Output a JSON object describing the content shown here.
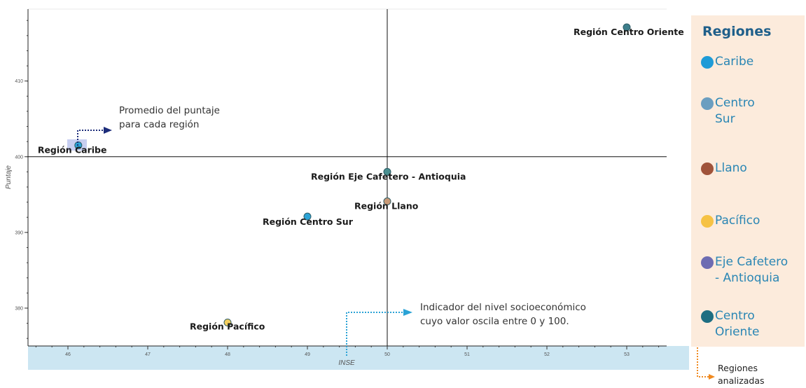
{
  "chart_data": {
    "type": "scatter",
    "xlabel": "INSE",
    "ylabel": "Puntaje",
    "xlim": [
      45.5,
      53.5
    ],
    "ylim": [
      375,
      419.5
    ],
    "x_ticks": [
      46,
      47,
      48,
      49,
      50,
      51,
      52,
      53
    ],
    "y_ticks": [
      380,
      390,
      400,
      410
    ],
    "reference_lines": {
      "x": 50,
      "y": 400
    },
    "points": [
      {
        "label": "Región Caribe",
        "x": 46.13,
        "y": 401.5,
        "color": "#2ba3d6"
      },
      {
        "label": "Región Centro Oriente",
        "x": 53.0,
        "y": 417.1,
        "color": "#3e7f8c"
      },
      {
        "label": "Región Eje Cafetero - Antioquia",
        "x": 50.0,
        "y": 398.0,
        "color": "#4a8f90"
      },
      {
        "label": "Región Llano",
        "x": 50.0,
        "y": 394.1,
        "color": "#c89a78"
      },
      {
        "label": "Región Centro Sur",
        "x": 49.0,
        "y": 392.1,
        "color": "#2ba3d6"
      },
      {
        "label": "Región Pacífico",
        "x": 48.0,
        "y": 378.1,
        "color": "#f4cf5e"
      }
    ],
    "annotations": [
      {
        "text": [
          "Promedio del puntaje",
          "para cada región"
        ]
      },
      {
        "text": [
          "Indicador del nivel socioeconómico",
          "cuyo valor oscila entre 0 y 100."
        ]
      }
    ],
    "legend_placement": "right"
  },
  "legend": {
    "title": "Regiones",
    "items": [
      {
        "lines": [
          "Caribe"
        ],
        "color": "#1e9bd7"
      },
      {
        "lines": [
          "Centro",
          "Sur"
        ],
        "color": "#6b9ec0"
      },
      {
        "lines": [
          "Llano"
        ],
        "color": "#a0533a"
      },
      {
        "lines": [
          "Pacífico"
        ],
        "color": "#f6c244"
      },
      {
        "lines": [
          "Eje Cafetero",
          "- Antioquia"
        ],
        "color": "#6d6cb2"
      },
      {
        "lines": [
          "Centro",
          "Oriente"
        ],
        "color": "#1e6e82"
      }
    ],
    "note": "Regiones analizadas"
  },
  "colors": {
    "axis_band": "#cce6f2",
    "annotation_navy": "#1c2c7a",
    "annotation_blue": "#2ba3d6",
    "note_arrow": "#f08a20"
  }
}
